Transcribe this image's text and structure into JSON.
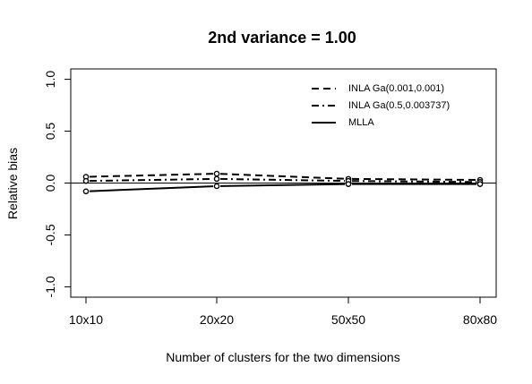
{
  "chart_data": {
    "type": "line",
    "title": "2nd variance = 1.00",
    "xlabel": "Number of clusters for the two dimensions",
    "ylabel": "Relative bias",
    "categories": [
      "10x10",
      "20x20",
      "50x50",
      "80x80"
    ],
    "ylim": [
      -1.1,
      1.1
    ],
    "yticks": [
      "-1.0",
      "-0.5",
      "0.0",
      "0.5",
      "1.0"
    ],
    "yticks_values": [
      -1.0,
      -0.5,
      0.0,
      0.5,
      1.0
    ],
    "reference_line": 0.0,
    "legend_position": "top-right",
    "series": [
      {
        "name": "INLA Ga(0.001,0.001)",
        "line_style": "dashed",
        "values": [
          0.06,
          0.09,
          0.04,
          0.03
        ]
      },
      {
        "name": "INLA Ga(0.5,0.003737)",
        "line_style": "dotdash",
        "values": [
          0.02,
          0.04,
          0.02,
          0.01
        ]
      },
      {
        "name": "MLLA",
        "line_style": "solid",
        "values": [
          -0.08,
          -0.03,
          -0.01,
          -0.01
        ]
      }
    ]
  }
}
